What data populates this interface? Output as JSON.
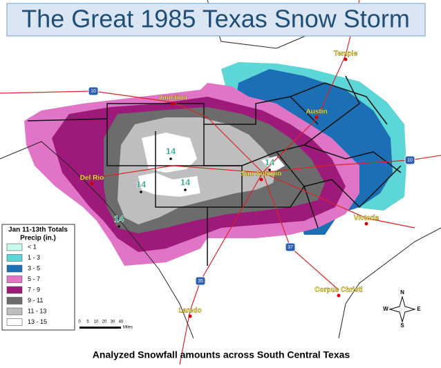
{
  "title": "The Great 1985 Texas Snow Storm",
  "cities": [
    "Temple",
    "Junction",
    "Austin",
    "Del Rio",
    "San Antonio",
    "Victoria",
    "Corpus Christi",
    "Laredo"
  ],
  "highways": [
    "10",
    "10",
    "37",
    "35"
  ],
  "snow_labels": [
    "14",
    "14",
    "14",
    "14",
    "14"
  ],
  "legend": {
    "title": "Jan 11-13th Totals",
    "subtitle": "Precip (in.)",
    "items": [
      {
        "label": "< 1",
        "color": "#c8fbef"
      },
      {
        "label": "1 - 3",
        "color": "#5cd6d6"
      },
      {
        "label": "3 - 5",
        "color": "#1c6fb5"
      },
      {
        "label": "5 - 7",
        "color": "#e074c6"
      },
      {
        "label": "7 - 9",
        "color": "#9e1a7a"
      },
      {
        "label": "9 - 11",
        "color": "#6c6c6c"
      },
      {
        "label": "11 - 13",
        "color": "#bebebe"
      },
      {
        "label": "13 - 15",
        "color": "#ffffff"
      }
    ]
  },
  "scale": {
    "labels": [
      "0",
      "5",
      "10",
      "20",
      "30",
      "40"
    ],
    "unit": "Miles"
  },
  "compass": [
    "N",
    "E",
    "S",
    "W"
  ],
  "caption": "Analyzed Snowfall amounts across South Central Texas"
}
